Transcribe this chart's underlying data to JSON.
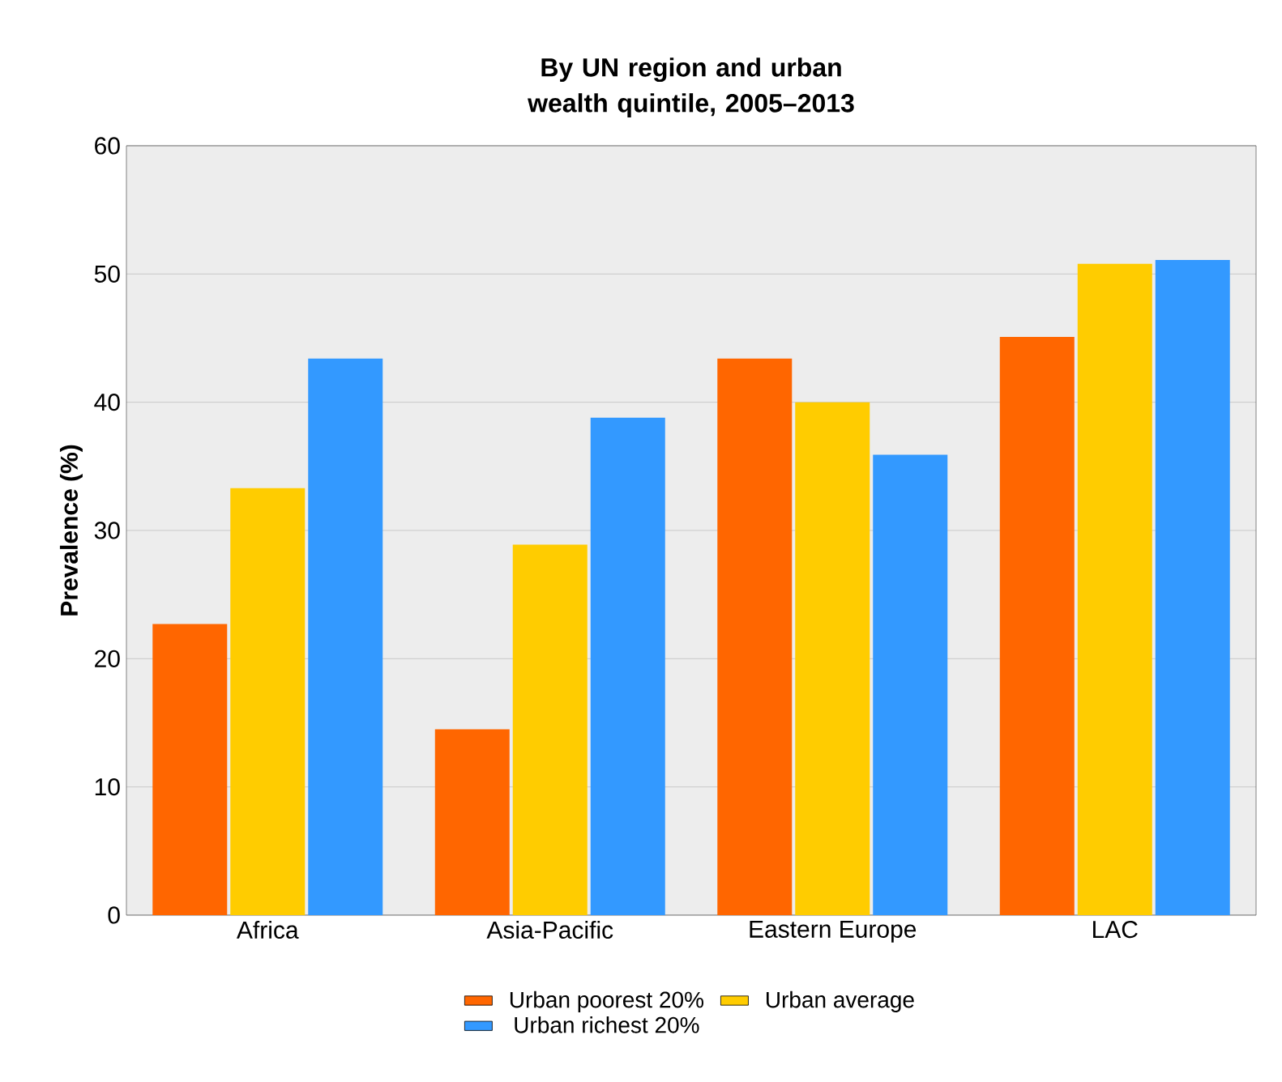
{
  "chart_data": {
    "type": "bar",
    "title": "By UN region and urban wealth quintile, 2005–2013",
    "ylabel": "Prevalence (%)",
    "categories": [
      "Africa",
      "Asia-Pacific",
      "Eastern Europe",
      "LAC"
    ],
    "series": [
      {
        "name": "Urban poorest 20%",
        "color": "#ff6600",
        "values": [
          22.7,
          14.5,
          43.4,
          45.1
        ]
      },
      {
        "name": "Urban average",
        "color": "#ffcc00",
        "values": [
          33.3,
          28.9,
          40.0,
          50.8
        ]
      },
      {
        "name": "Urban richest 20%",
        "color": "#3399ff",
        "values": [
          43.4,
          38.8,
          35.9,
          51.1
        ]
      }
    ],
    "ylim": [
      0,
      60
    ],
    "yticks": [
      0,
      10,
      20,
      30,
      40,
      50,
      60
    ],
    "grid": "y",
    "legend": "bottom"
  }
}
